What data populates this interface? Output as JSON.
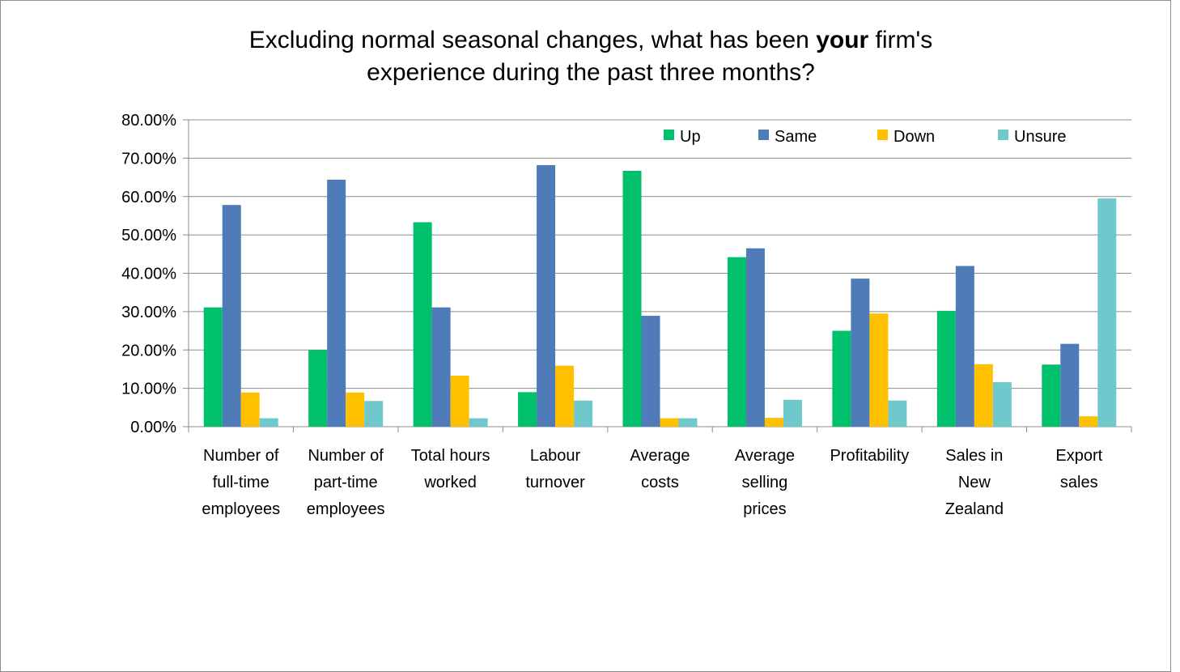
{
  "chart_data": {
    "type": "bar",
    "title_part1": "Excluding normal seasonal changes, what has been ",
    "title_emph": "your",
    "title_part2": " firm's",
    "title_line2": "experience during the past three months?",
    "ylim": [
      0,
      80
    ],
    "y_ticks": [
      0,
      10,
      20,
      30,
      40,
      50,
      60,
      70,
      80
    ],
    "y_tick_labels": [
      "0.00%",
      "10.00%",
      "20.00%",
      "30.00%",
      "40.00%",
      "50.00%",
      "60.00%",
      "70.00%",
      "80.00%"
    ],
    "grid": true,
    "legend_position": "top-right",
    "categories": [
      [
        "Number of",
        "full-time",
        "employees"
      ],
      [
        "Number of",
        "part-time",
        "employees"
      ],
      [
        "Total hours",
        "worked"
      ],
      [
        "Labour",
        "turnover"
      ],
      [
        "Average",
        "costs"
      ],
      [
        "Average",
        "selling",
        "prices"
      ],
      [
        "Profitability"
      ],
      [
        "Sales in",
        "New",
        "Zealand"
      ],
      [
        "Export",
        "sales"
      ]
    ],
    "series": [
      {
        "name": "Up",
        "color": "#00c06b",
        "values": [
          31.1,
          20.0,
          53.3,
          9.0,
          66.7,
          44.2,
          25.0,
          30.2,
          16.2
        ]
      },
      {
        "name": "Same",
        "color": "#4f7bb8",
        "values": [
          57.8,
          64.4,
          31.1,
          68.2,
          28.9,
          46.5,
          38.6,
          41.9,
          21.6
        ]
      },
      {
        "name": "Down",
        "color": "#ffc000",
        "values": [
          8.9,
          8.9,
          13.3,
          15.9,
          2.2,
          2.3,
          29.5,
          16.3,
          2.7
        ]
      },
      {
        "name": "Unsure",
        "color": "#6ec8cc",
        "values": [
          2.2,
          6.7,
          2.2,
          6.8,
          2.2,
          7.0,
          6.8,
          11.6,
          59.5
        ]
      }
    ]
  }
}
